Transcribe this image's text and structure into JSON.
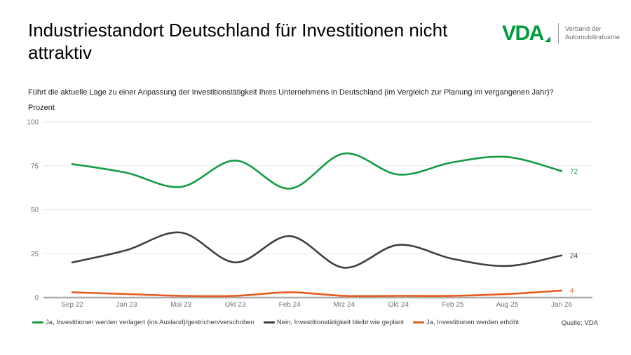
{
  "header": {
    "title": "Industriestandort Deutschland für Investitionen nicht attraktiv",
    "logo": {
      "text": "VDA",
      "tagline_line1": "Verband der",
      "tagline_line2": "Automobilindustrie",
      "brand_color": "#009b3e"
    }
  },
  "subtitle": "Führt die aktuelle Lage zu einer Anpassung der Investitionstätigkeit Ihres Unternehmens in Deutschland (im Vergleich zur Planung im vergangenen Jahr)?",
  "chart_data": {
    "type": "line",
    "title": "",
    "xlabel": "",
    "ylabel": "Prozent",
    "ylim": [
      0,
      100
    ],
    "yticks": [
      0,
      25,
      50,
      75,
      100
    ],
    "grid": "horizontal",
    "smooth": true,
    "legend_position": "bottom",
    "categories": [
      "Sep 22",
      "Jan 23",
      "Mai 23",
      "Okt 23",
      "Feb 24",
      "Mrz 24",
      "Okt 24",
      "Feb 25",
      "Aug 25",
      "Jan 26"
    ],
    "series": [
      {
        "name": "Ja, Investitionen werden verlagert (ins Ausland)/gestrichen/verschoben",
        "color": "#149b41",
        "values": [
          76,
          71,
          63,
          78,
          62,
          82,
          70,
          77,
          80,
          72
        ],
        "end_label": "72"
      },
      {
        "name": "Nein, Investitionstätigkeit bleibt wie geplant",
        "color": "#3f3f3f",
        "values": [
          20,
          27,
          37,
          20,
          35,
          17,
          30,
          22,
          18,
          24
        ],
        "end_label": "24"
      },
      {
        "name": "Ja, Investitionen werden erhöht",
        "color": "#e55c1e",
        "values": [
          3,
          2,
          1,
          1,
          3,
          1,
          1,
          1,
          2,
          4
        ],
        "end_label": "4"
      }
    ],
    "axis_colors": {
      "gridline": "#e7e7e7",
      "zero_axis": "#ababab",
      "tick_label": "#757575"
    }
  },
  "source": "Quelle: VDA"
}
